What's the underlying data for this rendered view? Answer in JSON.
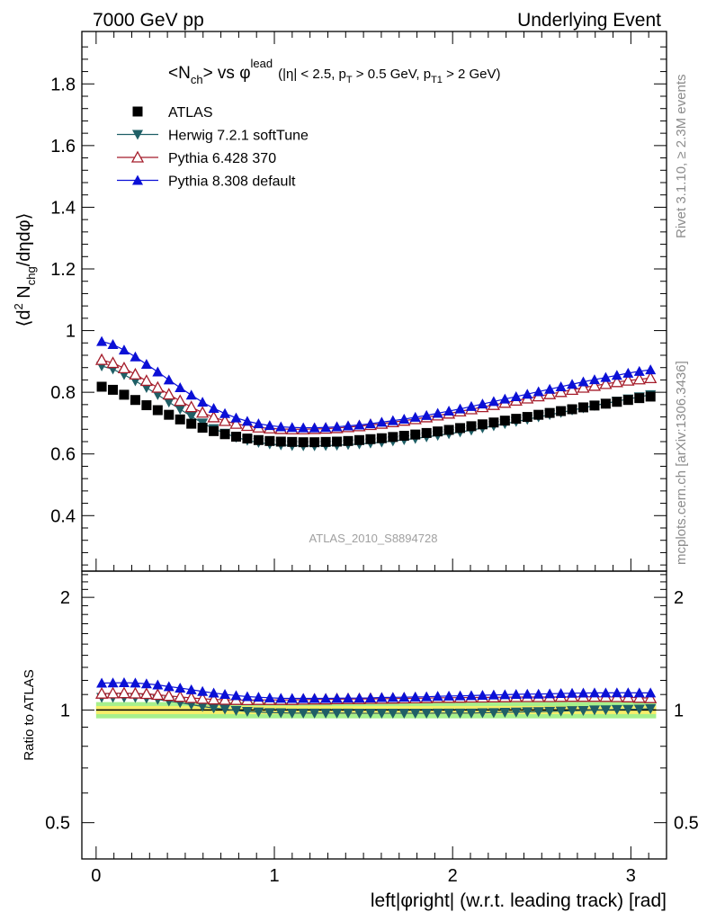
{
  "header": {
    "left": "7000 GeV pp",
    "right": "Underlying Event"
  },
  "side_text": {
    "rivet": "Rivet 3.1.10, ≥ 2.3M events",
    "mcplots": "mcplots.cern.ch [arXiv:1306.3436]"
  },
  "plot": {
    "title_main": "<N",
    "title_sub1": "ch",
    "title_mid": "> vs φ",
    "title_sup": "lead",
    "title_cuts": "(|η| < 2.5, p",
    "title_cuts_sub": "T",
    "title_cuts2": " > 0.5 GeV, p",
    "title_cuts_sub2": "T1",
    "title_cuts3": " > 2 GeV)",
    "watermark": "ATLAS_2010_S8894728",
    "ylabel_pre": "⟨d",
    "ylabel_sup": "2",
    "ylabel_n": " N",
    "ylabel_sub": "chg",
    "ylabel_post": "/dηdφ⟩",
    "ratio_ylabel": "Ratio to ATLAS",
    "xlabel": "left|φright| (w.r.t. leading track) [rad]"
  },
  "colors": {
    "atlas": "#000000",
    "herwig": "#1f5f66",
    "pythia6": "#a51c2a",
    "pythia8": "#0b10d6",
    "band_inner": "#f5ee6a",
    "band_outer": "#a6f08c"
  },
  "chart_data": [
    {
      "type": "scatter",
      "panel": "main",
      "xlim": [
        -0.08,
        3.2
      ],
      "ylim": [
        0.22,
        1.97
      ],
      "x_ticks": [
        0,
        1,
        2,
        3
      ],
      "x_tick_labels": [],
      "y_ticks": [
        0.4,
        0.6,
        0.8,
        1,
        1.2,
        1.4,
        1.6,
        1.8
      ],
      "y_tick_labels": [
        "0.4",
        "0.6",
        "0.8",
        "1",
        "1.2",
        "1.4",
        "1.6",
        "1.8"
      ],
      "legend_position": "top-left",
      "x": [
        0.0314,
        0.0942,
        0.157,
        0.2199,
        0.2827,
        0.3456,
        0.4084,
        0.4712,
        0.5341,
        0.5969,
        0.6597,
        0.7226,
        0.7854,
        0.8482,
        0.9111,
        0.9739,
        1.0367,
        1.0996,
        1.1624,
        1.2252,
        1.2881,
        1.3509,
        1.4137,
        1.4766,
        1.5394,
        1.6022,
        1.6651,
        1.7279,
        1.7907,
        1.8536,
        1.9164,
        1.9792,
        2.0421,
        2.1049,
        2.1677,
        2.2306,
        2.2934,
        2.3562,
        2.4191,
        2.4819,
        2.5447,
        2.6076,
        2.6704,
        2.7332,
        2.7961,
        2.8589,
        2.9217,
        2.9846,
        3.0474,
        3.1102
      ],
      "series": [
        {
          "name": "ATLAS",
          "marker": "square",
          "values": [
            0.818,
            0.808,
            0.792,
            0.775,
            0.758,
            0.742,
            0.727,
            0.712,
            0.698,
            0.685,
            0.674,
            0.664,
            0.656,
            0.65,
            0.645,
            0.642,
            0.64,
            0.639,
            0.638,
            0.638,
            0.639,
            0.64,
            0.642,
            0.645,
            0.648,
            0.651,
            0.655,
            0.659,
            0.663,
            0.668,
            0.673,
            0.678,
            0.684,
            0.69,
            0.696,
            0.702,
            0.708,
            0.714,
            0.72,
            0.727,
            0.733,
            0.739,
            0.745,
            0.751,
            0.757,
            0.763,
            0.769,
            0.775,
            0.781,
            0.786
          ]
        },
        {
          "name": "Herwig 7.2.1 softTune",
          "marker": "triangle-down",
          "values": [
            0.885,
            0.875,
            0.857,
            0.837,
            0.815,
            0.792,
            0.768,
            0.745,
            0.722,
            0.7,
            0.682,
            0.667,
            0.654,
            0.644,
            0.637,
            0.632,
            0.629,
            0.627,
            0.626,
            0.626,
            0.627,
            0.628,
            0.63,
            0.632,
            0.635,
            0.638,
            0.642,
            0.646,
            0.65,
            0.655,
            0.66,
            0.665,
            0.671,
            0.677,
            0.684,
            0.691,
            0.698,
            0.705,
            0.712,
            0.72,
            0.727,
            0.734,
            0.742,
            0.749,
            0.757,
            0.764,
            0.771,
            0.778,
            0.785,
            0.792
          ]
        },
        {
          "name": "Pythia 6.428 370",
          "marker": "triangle-up-open",
          "values": [
            0.905,
            0.895,
            0.878,
            0.858,
            0.837,
            0.815,
            0.793,
            0.772,
            0.752,
            0.734,
            0.719,
            0.707,
            0.698,
            0.691,
            0.686,
            0.683,
            0.681,
            0.68,
            0.68,
            0.681,
            0.682,
            0.684,
            0.687,
            0.69,
            0.694,
            0.698,
            0.703,
            0.708,
            0.713,
            0.719,
            0.725,
            0.731,
            0.738,
            0.745,
            0.752,
            0.759,
            0.766,
            0.773,
            0.78,
            0.787,
            0.794,
            0.801,
            0.808,
            0.815,
            0.821,
            0.827,
            0.833,
            0.838,
            0.842,
            0.846
          ]
        },
        {
          "name": "Pythia 8.308 default",
          "marker": "triangle-up",
          "values": [
            0.965,
            0.955,
            0.937,
            0.915,
            0.891,
            0.866,
            0.84,
            0.815,
            0.791,
            0.768,
            0.748,
            0.731,
            0.717,
            0.706,
            0.698,
            0.692,
            0.688,
            0.686,
            0.685,
            0.685,
            0.686,
            0.688,
            0.691,
            0.694,
            0.698,
            0.703,
            0.708,
            0.713,
            0.719,
            0.725,
            0.732,
            0.739,
            0.746,
            0.754,
            0.762,
            0.77,
            0.778,
            0.786,
            0.794,
            0.802,
            0.81,
            0.818,
            0.826,
            0.834,
            0.841,
            0.848,
            0.855,
            0.862,
            0.868,
            0.873
          ]
        }
      ]
    },
    {
      "type": "scatter",
      "panel": "ratio",
      "xlim": [
        -0.08,
        3.2
      ],
      "ylim": [
        0.4,
        2.35
      ],
      "y_scale": "log",
      "x_ticks": [
        0,
        1,
        2,
        3
      ],
      "x_tick_labels": [
        "0",
        "1",
        "2",
        "3"
      ],
      "y_ticks": [
        0.5,
        1,
        2
      ],
      "y_tick_labels": [
        "0.5",
        "1",
        "2"
      ],
      "band_inner": [
        0.975,
        1.025
      ],
      "band_outer": [
        0.95,
        1.05
      ],
      "x": [
        0.0314,
        0.0942,
        0.157,
        0.2199,
        0.2827,
        0.3456,
        0.4084,
        0.4712,
        0.5341,
        0.5969,
        0.6597,
        0.7226,
        0.7854,
        0.8482,
        0.9111,
        0.9739,
        1.0367,
        1.0996,
        1.1624,
        1.2252,
        1.2881,
        1.3509,
        1.4137,
        1.4766,
        1.5394,
        1.6022,
        1.6651,
        1.7279,
        1.7907,
        1.8536,
        1.9164,
        1.9792,
        2.0421,
        2.1049,
        2.1677,
        2.2306,
        2.2934,
        2.3562,
        2.4191,
        2.4819,
        2.5447,
        2.6076,
        2.6704,
        2.7332,
        2.7961,
        2.8589,
        2.9217,
        2.9846,
        3.0474,
        3.1102
      ],
      "series": [
        {
          "name": "Herwig 7.2.1 softTune",
          "marker": "triangle-down",
          "values": [
            1.08,
            1.08,
            1.08,
            1.08,
            1.075,
            1.067,
            1.056,
            1.046,
            1.034,
            1.022,
            1.012,
            1.005,
            0.997,
            0.991,
            0.988,
            0.984,
            0.983,
            0.981,
            0.981,
            0.981,
            0.981,
            0.981,
            0.981,
            0.98,
            0.98,
            0.98,
            0.98,
            0.98,
            0.98,
            0.98,
            0.981,
            0.981,
            0.981,
            0.981,
            0.983,
            0.984,
            0.986,
            0.987,
            0.989,
            0.99,
            0.992,
            0.993,
            0.996,
            0.997,
            1.0,
            1.001,
            1.003,
            1.004,
            1.005,
            1.008
          ]
        },
        {
          "name": "Pythia 6.428 370",
          "marker": "triangle-up-open",
          "values": [
            1.106,
            1.108,
            1.109,
            1.107,
            1.104,
            1.098,
            1.091,
            1.084,
            1.077,
            1.072,
            1.067,
            1.065,
            1.064,
            1.063,
            1.064,
            1.064,
            1.064,
            1.064,
            1.066,
            1.067,
            1.067,
            1.069,
            1.07,
            1.07,
            1.071,
            1.072,
            1.073,
            1.074,
            1.075,
            1.076,
            1.078,
            1.078,
            1.079,
            1.08,
            1.08,
            1.081,
            1.082,
            1.083,
            1.083,
            1.083,
            1.083,
            1.084,
            1.085,
            1.085,
            1.085,
            1.084,
            1.083,
            1.081,
            1.078,
            1.076
          ]
        },
        {
          "name": "Pythia 8.308 default",
          "marker": "triangle-up",
          "values": [
            1.18,
            1.182,
            1.183,
            1.181,
            1.175,
            1.167,
            1.155,
            1.145,
            1.133,
            1.121,
            1.11,
            1.101,
            1.093,
            1.086,
            1.082,
            1.078,
            1.075,
            1.074,
            1.074,
            1.074,
            1.074,
            1.075,
            1.076,
            1.076,
            1.077,
            1.08,
            1.081,
            1.082,
            1.084,
            1.085,
            1.088,
            1.09,
            1.091,
            1.093,
            1.095,
            1.097,
            1.099,
            1.101,
            1.103,
            1.103,
            1.105,
            1.107,
            1.109,
            1.11,
            1.111,
            1.111,
            1.112,
            1.112,
            1.111,
            1.111
          ]
        }
      ]
    }
  ]
}
